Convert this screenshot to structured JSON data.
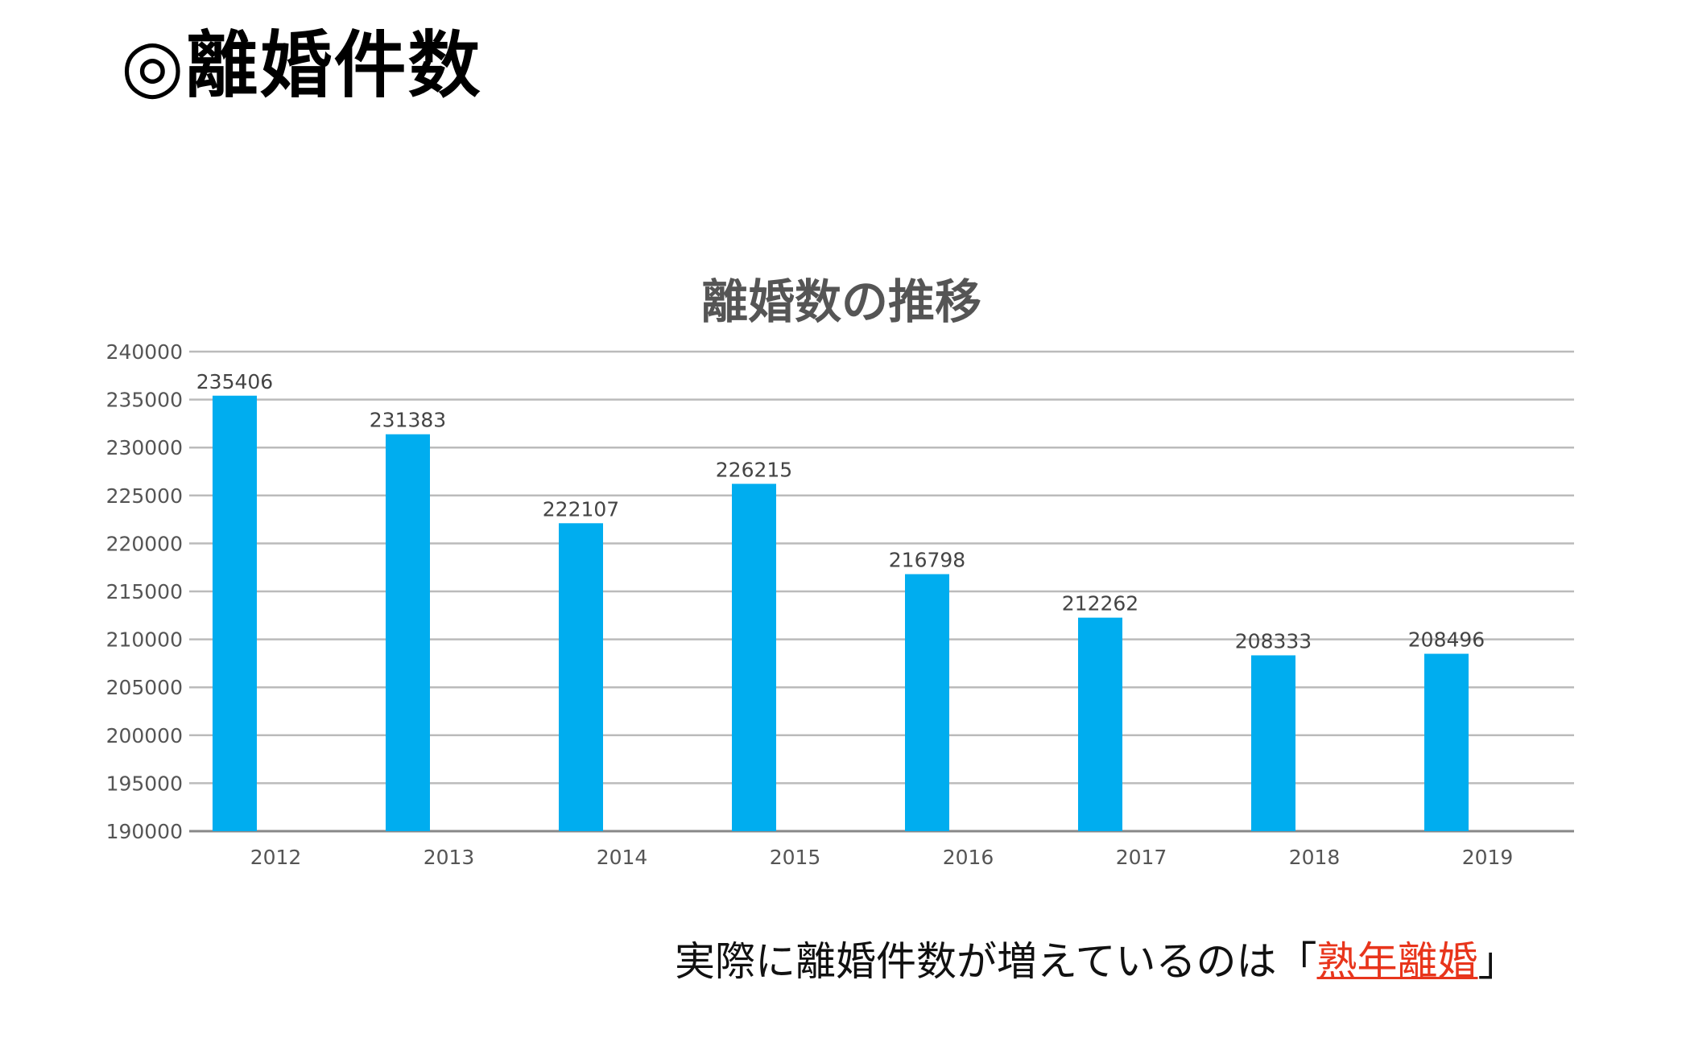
{
  "heading": "◎離婚件数",
  "caption": {
    "prefix": "実際に離婚件数が増えているのは「",
    "emphasis": "熟年離婚",
    "suffix": "」"
  },
  "chart_data": {
    "type": "bar",
    "title": "離婚数の推移",
    "categories": [
      "2012",
      "2013",
      "2014",
      "2015",
      "2016",
      "2017",
      "2018",
      "2019"
    ],
    "values": [
      235406,
      231383,
      222107,
      226215,
      216798,
      212262,
      208333,
      208496
    ],
    "ylim": [
      190000,
      240000
    ],
    "yticks": [
      190000,
      195000,
      200000,
      205000,
      210000,
      215000,
      220000,
      225000,
      230000,
      235000,
      240000
    ],
    "grid": true,
    "bar_color": "#00adef",
    "xlabel": "",
    "ylabel": ""
  }
}
